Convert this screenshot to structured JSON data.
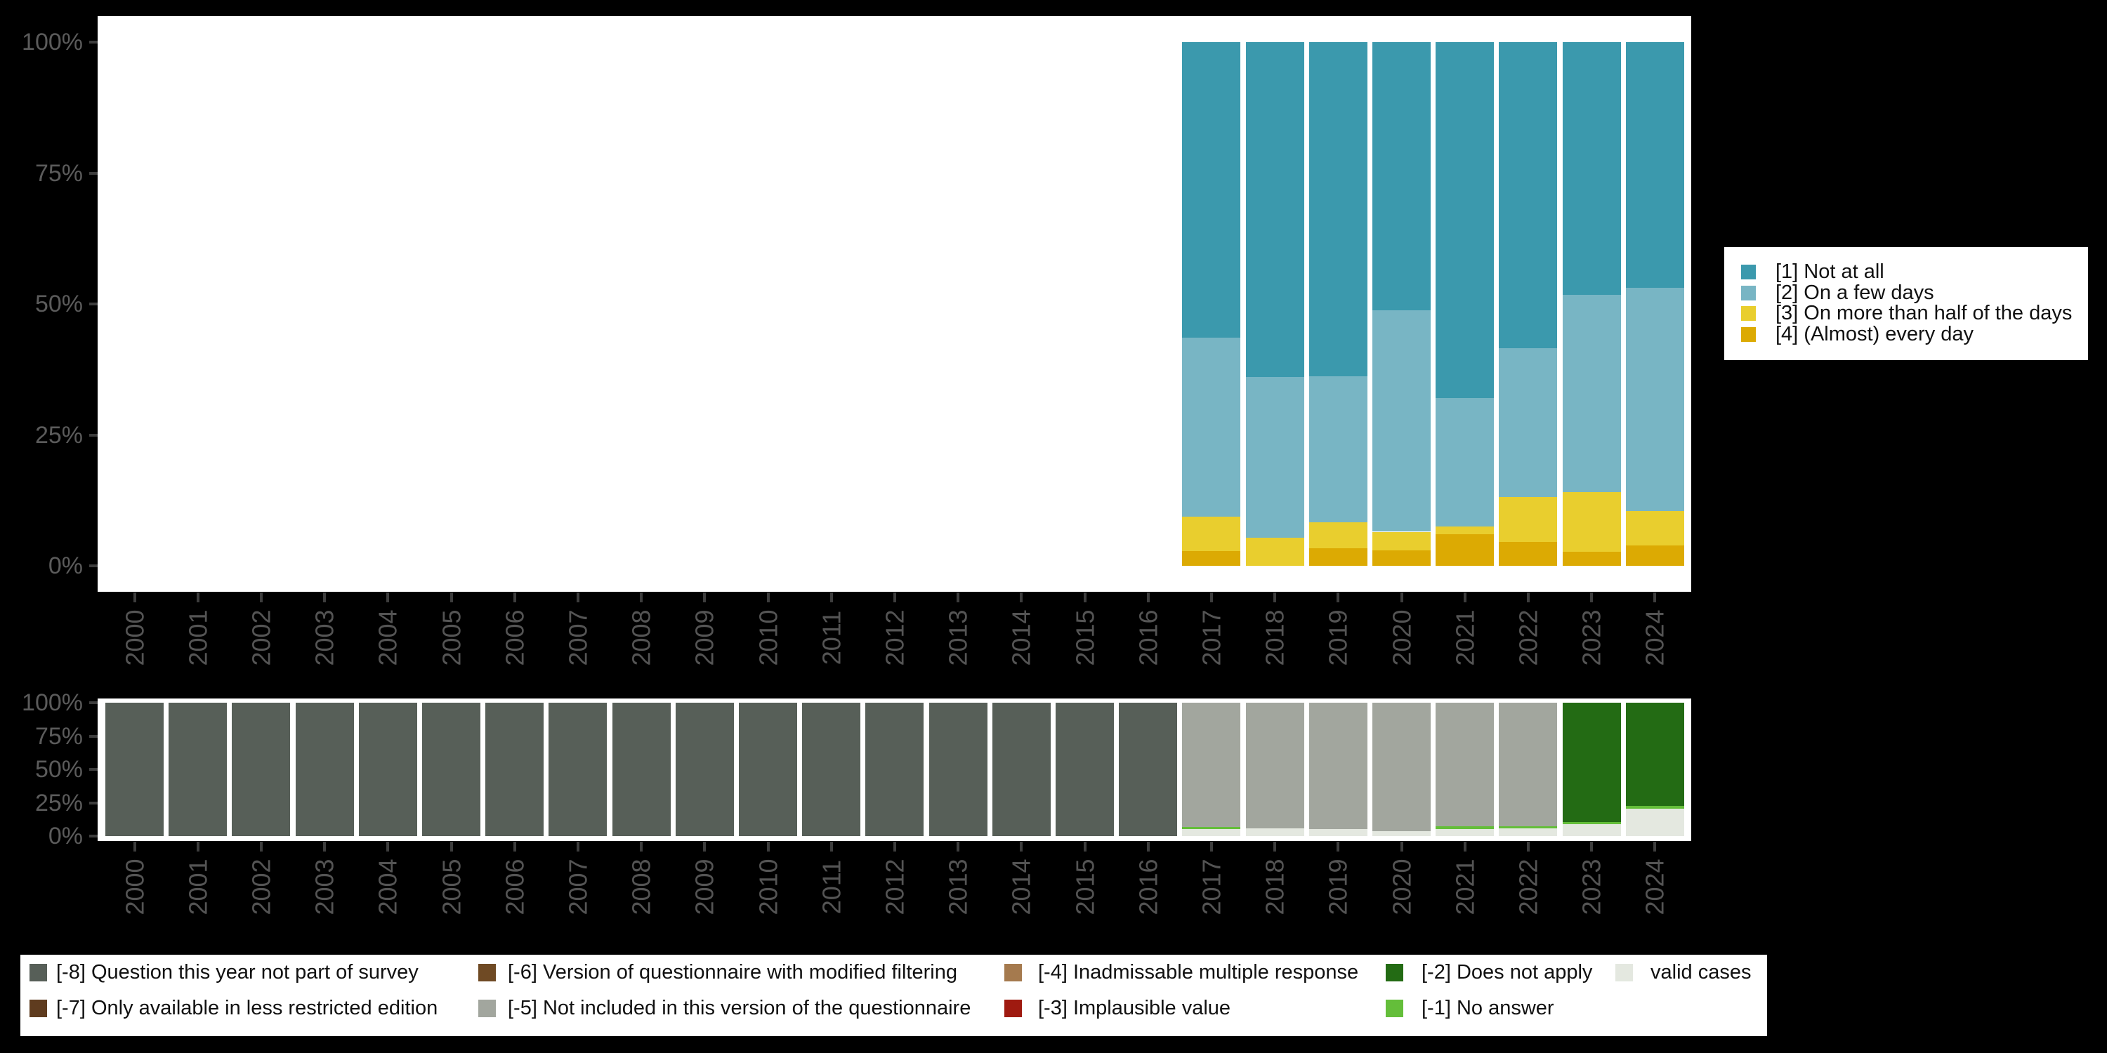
{
  "page": {
    "background": "#000000",
    "panel_background": "#ffffff",
    "axis_text_color": "#5b5b5b",
    "year_text_color": "#545454",
    "tick_color": "#3d3d3d"
  },
  "chart_data": [
    {
      "id": "response-distribution",
      "type": "bar",
      "stacked": true,
      "title": "",
      "xlabel": "",
      "ylabel": "",
      "categories": [
        "2000",
        "2001",
        "2002",
        "2003",
        "2004",
        "2005",
        "2006",
        "2007",
        "2008",
        "2009",
        "2010",
        "2011",
        "2012",
        "2013",
        "2014",
        "2015",
        "2016",
        "2017",
        "2018",
        "2019",
        "2020",
        "2021",
        "2022",
        "2023",
        "2024"
      ],
      "y_axis": {
        "range": [
          0,
          100
        ],
        "ticks": [
          100,
          75,
          50,
          25,
          0
        ],
        "tick_labels": [
          "100%",
          "75%",
          "50%",
          "25%",
          "0%"
        ],
        "grid": false
      },
      "legend_position": "right",
      "series": [
        {
          "name": "[1] Not at all",
          "color": "#3b99ad",
          "values": {
            "2017": 56.4,
            "2018": 64.0,
            "2019": 63.8,
            "2020": 51.2,
            "2021": 68.0,
            "2022": 58.5,
            "2023": 48.2,
            "2024": 46.9
          }
        },
        {
          "name": "[2] On a few days",
          "color": "#78b5c4",
          "values": {
            "2017": 34.2,
            "2018": 30.7,
            "2019": 27.9,
            "2020": 42.3,
            "2021": 24.5,
            "2022": 28.3,
            "2023": 37.7,
            "2024": 42.7
          }
        },
        {
          "name": "[3] On more than half of the days",
          "color": "#e9ce2e",
          "values": {
            "2017": 6.6,
            "2018": 5.3,
            "2019": 5.0,
            "2020": 3.6,
            "2021": 1.5,
            "2022": 8.7,
            "2023": 11.4,
            "2024": 6.5
          }
        },
        {
          "name": "[4] (Almost) every day",
          "color": "#dcaa03",
          "values": {
            "2017": 2.8,
            "2018": 0,
            "2019": 3.3,
            "2020": 2.9,
            "2021": 6.0,
            "2022": 4.5,
            "2023": 2.7,
            "2024": 3.9
          }
        }
      ],
      "stack_order_bottom_to_top": [
        3,
        2,
        1,
        0
      ]
    },
    {
      "id": "missing-values",
      "type": "bar",
      "stacked": true,
      "title": "",
      "xlabel": "",
      "ylabel": "",
      "categories": [
        "2000",
        "2001",
        "2002",
        "2003",
        "2004",
        "2005",
        "2006",
        "2007",
        "2008",
        "2009",
        "2010",
        "2011",
        "2012",
        "2013",
        "2014",
        "2015",
        "2016",
        "2017",
        "2018",
        "2019",
        "2020",
        "2021",
        "2022",
        "2023",
        "2024"
      ],
      "y_axis": {
        "range": [
          0,
          100
        ],
        "ticks": [
          100,
          75,
          50,
          25,
          0
        ],
        "tick_labels": [
          "100%",
          "75%",
          "50%",
          "25%",
          "0%"
        ],
        "grid": false
      },
      "legend_position": "bottom",
      "series": [
        {
          "name": "[-8] Question this year not part of survey",
          "color": "#575f58",
          "values": {
            "2000": 100,
            "2001": 100,
            "2002": 100,
            "2003": 100,
            "2004": 100,
            "2005": 100,
            "2006": 100,
            "2007": 100,
            "2008": 100,
            "2009": 100,
            "2010": 100,
            "2011": 100,
            "2012": 100,
            "2013": 100,
            "2014": 100,
            "2015": 100,
            "2016": 100
          }
        },
        {
          "name": "[-7] Only available in less restricted edition",
          "color": "#5f3c1f",
          "values": {}
        },
        {
          "name": "[-6] Version of questionnaire with modified filtering",
          "color": "#6f4a24",
          "values": {}
        },
        {
          "name": "[-5] Not included in this version of the questionnaire",
          "color": "#a2a69e",
          "values": {
            "2017": 92.9,
            "2018": 94.2,
            "2019": 94.7,
            "2020": 96.2,
            "2021": 92.5,
            "2022": 92.5
          }
        },
        {
          "name": "[-4] Inadmissable multiple response",
          "color": "#a57a4e",
          "values": {}
        },
        {
          "name": "[-3] Implausible value",
          "color": "#9f1a10",
          "values": {}
        },
        {
          "name": "[-2] Does not apply",
          "color": "#236b14",
          "values": {
            "2023": 89.3,
            "2024": 77.5
          }
        },
        {
          "name": "[-1] No answer",
          "color": "#64be3a",
          "values": {
            "2017": 1.7,
            "2021": 2.0,
            "2022": 1.5,
            "2023": 1.9,
            "2024": 2.0
          }
        },
        {
          "name": "valid cases",
          "color": "#e4e8e0",
          "values": {
            "2017": 5.4,
            "2018": 5.8,
            "2019": 5.3,
            "2020": 3.8,
            "2021": 5.5,
            "2022": 6.0,
            "2023": 8.8,
            "2024": 20.5
          }
        }
      ],
      "stack_order_bottom_to_top": [
        8,
        7,
        6,
        5,
        4,
        3,
        2,
        1,
        0
      ]
    }
  ]
}
